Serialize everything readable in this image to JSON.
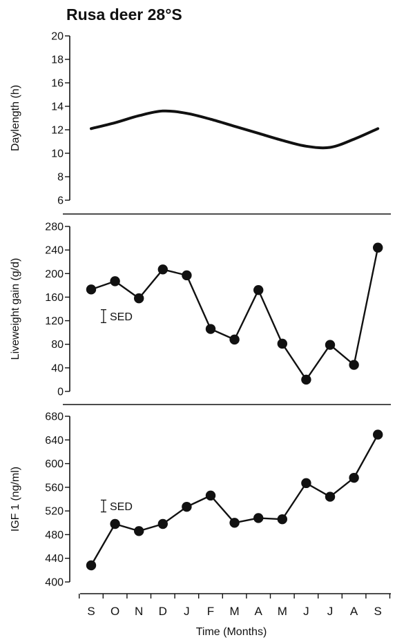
{
  "title": "Rusa deer 28°S",
  "x_axis": {
    "label": "Time (Months)",
    "months": [
      "S",
      "O",
      "N",
      "D",
      "J",
      "F",
      "M",
      "A",
      "M",
      "J",
      "J",
      "A",
      "S"
    ]
  },
  "chart_data": [
    {
      "type": "line",
      "ylabel": "Daylength (h)",
      "ylim": [
        6,
        20
      ],
      "yticks": [
        6,
        8,
        10,
        12,
        14,
        16,
        18,
        20
      ],
      "categories": [
        "S",
        "O",
        "N",
        "D",
        "J",
        "F",
        "M",
        "A",
        "M",
        "J",
        "J",
        "A",
        "S"
      ],
      "x": [
        0,
        1,
        2,
        3,
        4,
        5,
        6,
        7,
        8,
        9,
        10,
        11,
        12
      ],
      "values": [
        12.1,
        12.6,
        13.2,
        13.6,
        13.4,
        12.9,
        12.3,
        11.7,
        11.1,
        10.6,
        10.5,
        11.2,
        12.1
      ],
      "markers": false
    },
    {
      "type": "line",
      "ylabel": "Liveweight gain (g/d)",
      "ylim": [
        0,
        280
      ],
      "yticks": [
        0,
        40,
        80,
        120,
        160,
        200,
        240,
        280
      ],
      "categories": [
        "S",
        "O",
        "N",
        "D",
        "J",
        "F",
        "M",
        "A",
        "M",
        "J",
        "J",
        "A",
        "S"
      ],
      "values": [
        173,
        187,
        158,
        207,
        197,
        106,
        88,
        172,
        81,
        20,
        79,
        45,
        244
      ],
      "markers": true,
      "sed_label": "SED",
      "sed_value": 22
    },
    {
      "type": "line",
      "ylabel": "IGF 1  (ng/ml)",
      "ylim": [
        400,
        680
      ],
      "yticks": [
        400,
        440,
        480,
        520,
        560,
        600,
        640,
        680
      ],
      "categories": [
        "S",
        "O",
        "N",
        "D",
        "J",
        "F",
        "M",
        "A",
        "M",
        "J",
        "J",
        "A",
        "S"
      ],
      "values": [
        428,
        498,
        486,
        498,
        527,
        546,
        500,
        508,
        506,
        567,
        544,
        576,
        649
      ],
      "markers": true,
      "sed_label": "SED",
      "sed_value": 20
    }
  ]
}
